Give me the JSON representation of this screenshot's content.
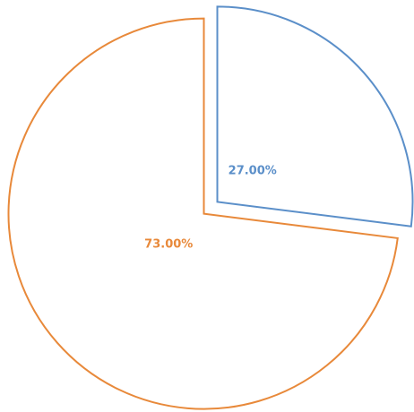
{
  "chart_data": {
    "type": "pie",
    "values": [
      27,
      73
    ],
    "value_labels": [
      "27.00%",
      "73.00%"
    ],
    "colors": [
      "#5b8fc9",
      "#e8893a"
    ],
    "start_angle": 0,
    "direction": "clockwise",
    "exploded": true
  }
}
